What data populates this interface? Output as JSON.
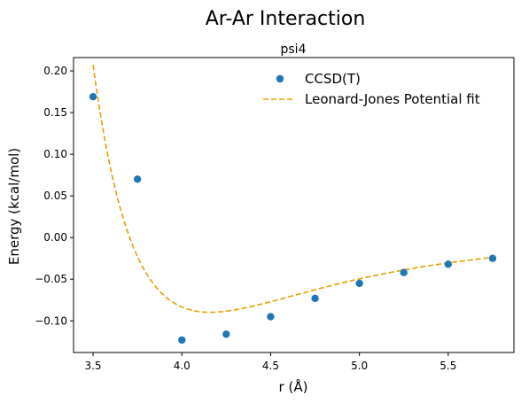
{
  "figure": {
    "title": "Ar-Ar Interaction",
    "subtitle": "psi4"
  },
  "chart_data": {
    "type": "scatter",
    "title": "Ar-Ar Interaction",
    "subtitle": "psi4",
    "xlabel": "r (Å)",
    "ylabel": "Energy (kcal/mol)",
    "xlim": [
      3.39,
      5.87
    ],
    "ylim": [
      -0.138,
      0.216
    ],
    "x_ticks": [
      3.5,
      4.0,
      4.5,
      5.0,
      5.5
    ],
    "x_tick_labels": [
      "3.5",
      "4.0",
      "4.5",
      "5.0",
      "5.5"
    ],
    "y_ticks": [
      0.2,
      0.15,
      0.1,
      0.05,
      0.0,
      -0.05,
      -0.1
    ],
    "y_tick_labels": [
      "0.20",
      "0.15",
      "0.10",
      "0.05",
      "0.00",
      "−0.05",
      "−0.10"
    ],
    "grid": false,
    "legend_position": "top-right",
    "series": [
      {
        "name": "CCSD(T)",
        "kind": "scatter",
        "color": "#1f77b4",
        "x": [
          3.5,
          3.75,
          4.0,
          4.25,
          4.5,
          4.75,
          5.0,
          5.25,
          5.5,
          5.75
        ],
        "y": [
          0.169,
          0.07,
          -0.123,
          -0.116,
          -0.095,
          -0.073,
          -0.055,
          -0.042,
          -0.032,
          -0.025
        ]
      },
      {
        "name": "Leonard-Jones Potential fit",
        "kind": "line",
        "style": "dashed",
        "color": "#e69f00",
        "model": "lennard-jones",
        "epsilon": 0.0897,
        "rmin": 4.16,
        "x_range": [
          3.5,
          5.75
        ]
      }
    ]
  }
}
